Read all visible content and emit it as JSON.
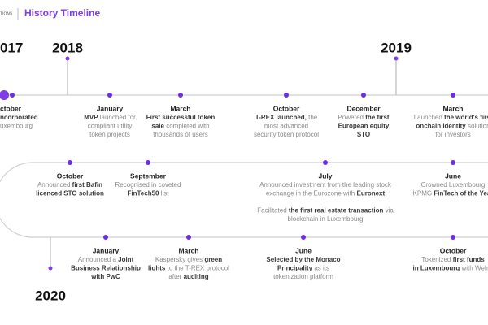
{
  "header": {
    "brand": "TIONS",
    "title": "History Timeline"
  },
  "years": [
    {
      "label": "017",
      "x": "row1-start"
    },
    {
      "label": "2018"
    },
    {
      "label": "2019"
    },
    {
      "label": "2020"
    }
  ],
  "rows": [
    {
      "events": [
        {
          "month": "ctober",
          "lines": [
            [
              {
                "t": "ncorporated",
                "b": true
              }
            ],
            [
              {
                "t": "uxembourg"
              }
            ]
          ]
        },
        {
          "month": "January",
          "lines": [
            [
              {
                "t": "MVP",
                "b": true
              },
              {
                "t": " launched for"
              }
            ],
            [
              {
                "t": "compliant utility"
              }
            ],
            [
              {
                "t": "token projects"
              }
            ]
          ]
        },
        {
          "month": "March",
          "lines": [
            [
              {
                "t": "First successful token",
                "b": true
              }
            ],
            [
              {
                "t": "sale",
                "b": true
              },
              {
                "t": " completed with"
              }
            ],
            [
              {
                "t": "thousands of users"
              }
            ]
          ]
        },
        {
          "month": "October",
          "lines": [
            [
              {
                "t": "T-REX launched,",
                "b": true
              },
              {
                "t": " the"
              }
            ],
            [
              {
                "t": "most advanced"
              }
            ],
            [
              {
                "t": "security token protocol"
              }
            ]
          ]
        },
        {
          "month": "December",
          "lines": [
            [
              {
                "t": "Powered "
              },
              {
                "t": "the first",
                "b": true
              }
            ],
            [
              {
                "t": "European equity",
                "b": true
              }
            ],
            [
              {
                "t": "STO",
                "b": true
              }
            ]
          ]
        },
        {
          "month": "March",
          "lines": [
            [
              {
                "t": "Launched "
              },
              {
                "t": "the world's first",
                "b": true
              }
            ],
            [
              {
                "t": "onchain identity",
                "b": true
              },
              {
                "t": " solution"
              }
            ],
            [
              {
                "t": "for investors"
              }
            ]
          ]
        }
      ]
    },
    {
      "events": [
        {
          "month": "October",
          "lines": [
            [
              {
                "t": "Announced "
              },
              {
                "t": "first Bafin",
                "b": true
              }
            ],
            [
              {
                "t": "licenced STO solution",
                "b": true
              }
            ]
          ]
        },
        {
          "month": "September",
          "lines": [
            [
              {
                "t": "Recognised in coveted"
              }
            ],
            [
              {
                "t": "FinTech50",
                "b": true
              },
              {
                "t": " list"
              }
            ]
          ]
        },
        {
          "month": "July",
          "lines": [
            [
              {
                "t": "Announced investment from the leading stock"
              }
            ],
            [
              {
                "t": "exchange in the Eurozone with "
              },
              {
                "t": "Euronext",
                "b": true
              }
            ]
          ],
          "note": [
            [
              {
                "t": "Facilitated "
              },
              {
                "t": "the first real estate transaction",
                "b": true
              },
              {
                "t": " via"
              }
            ],
            [
              {
                "t": "blockchain in Luxembourg"
              }
            ]
          ]
        },
        {
          "month": "June",
          "lines": [
            [
              {
                "t": "Crowned Luxembourg"
              }
            ],
            [
              {
                "t": "KPMG "
              },
              {
                "t": "FinTech of the Year",
                "b": true
              }
            ]
          ]
        }
      ]
    },
    {
      "events": [
        {
          "month": "January",
          "lines": [
            [
              {
                "t": "Announced a "
              },
              {
                "t": "Joint",
                "b": true
              }
            ],
            [
              {
                "t": "Business Relationship",
                "b": true
              }
            ],
            [
              {
                "t": "with PwC",
                "b": true
              }
            ]
          ]
        },
        {
          "month": "March",
          "lines": [
            [
              {
                "t": "Kaspersky gives "
              },
              {
                "t": "green",
                "b": true
              }
            ],
            [
              {
                "t": "lights",
                "b": true
              },
              {
                "t": " to the T-REX protocol"
              }
            ],
            [
              {
                "t": "after "
              },
              {
                "t": "auditing",
                "b": true
              }
            ]
          ]
        },
        {
          "month": "June",
          "lines": [
            [
              {
                "t": "Selected by the Monaco",
                "b": true
              }
            ],
            [
              {
                "t": "Principality",
                "b": true
              },
              {
                "t": " as its"
              }
            ],
            [
              {
                "t": "tokenization platform"
              }
            ]
          ]
        },
        {
          "month": "October",
          "lines": [
            [
              {
                "t": "Tokenized "
              },
              {
                "t": "first funds",
                "b": true
              }
            ],
            [
              {
                "t": "in Luxembourg",
                "b": true
              },
              {
                "t": " with WeIns"
              }
            ]
          ]
        }
      ]
    }
  ]
}
